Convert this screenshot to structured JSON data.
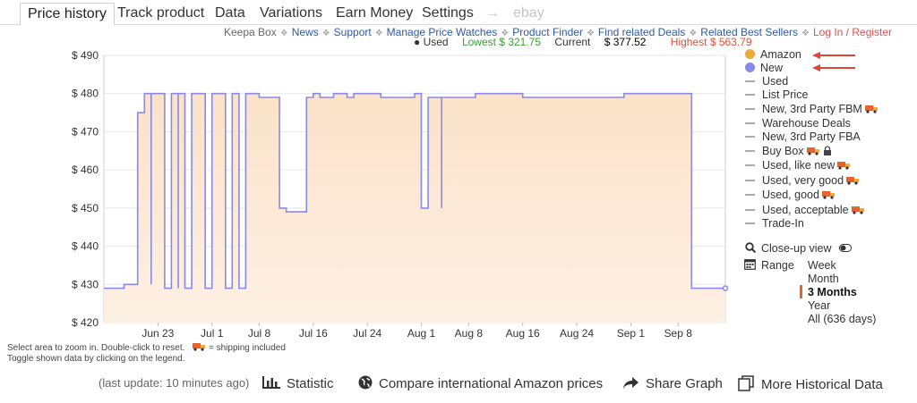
{
  "tabs": [
    {
      "label": "Price history",
      "active": true
    },
    {
      "label": "Track product"
    },
    {
      "label": "Data"
    },
    {
      "label": "Variations"
    },
    {
      "label": "Earn Money"
    },
    {
      "label": "Settings"
    },
    {
      "label": "→",
      "icon": "arrow-right-icon"
    },
    {
      "label": "ebay",
      "disabled": true
    }
  ],
  "links": [
    {
      "label": "Keepa Box"
    },
    {
      "label": "News"
    },
    {
      "label": "Support"
    },
    {
      "label": "Manage Price Watches"
    },
    {
      "label": "Product Finder"
    },
    {
      "label": "Find related Deals"
    },
    {
      "label": "Related Best Sellers"
    },
    {
      "label": "Log In / Register"
    }
  ],
  "link_separator": "❖",
  "stats": {
    "used": "● Used",
    "lowest": "Lowest $ 321.75",
    "current_label": "Current",
    "current_value": "$ 377.52",
    "highest": "Highest $ 563.79"
  },
  "legend": {
    "amazon": "Amazon",
    "new": "New",
    "used": "Used",
    "list_price": "List Price",
    "new_3p_fbm": "New, 3rd Party FBM",
    "warehouse": "Warehouse Deals",
    "new_3p_fba": "New, 3rd Party FBA",
    "buy_box": "Buy Box",
    "used_like_new": "Used, like new",
    "used_very_good": "Used, very good",
    "used_good": "Used, good",
    "used_acceptable": "Used, acceptable",
    "trade_in": "Trade-In",
    "close_up": "Close-up view"
  },
  "range": {
    "label": "Range",
    "options": [
      "Week",
      "Month",
      "3 Months",
      "Year",
      "All (636 days)"
    ],
    "active": "3 Months"
  },
  "help": {
    "line1": "Select area to zoom in. Double-click to reset.",
    "shipping": "= shipping included",
    "line2": "Toggle shown data by clicking on the legend."
  },
  "footer": {
    "last_update": "(last update: 10 minutes ago)",
    "statistic": "Statistic",
    "compare": "Compare international Amazon prices",
    "share": "Share Graph",
    "more": "More Historical Data"
  },
  "colors": {
    "new_line": "#8a8ae6",
    "fill": "#fbe5d0",
    "amazon": "#f0a93a",
    "arrow": "#e0453a"
  },
  "chart_data": {
    "type": "line",
    "ylim": [
      420,
      490
    ],
    "yticks": [
      420,
      430,
      440,
      450,
      460,
      470,
      480,
      490
    ],
    "ytick_labels": [
      "$ 420",
      "$ 430",
      "$ 440",
      "$ 450",
      "$ 460",
      "$ 470",
      "$ 480",
      "$ 490"
    ],
    "x_range": [
      "2025-06-15",
      "2025-09-15"
    ],
    "xticks": [
      {
        "label": "Jun 23",
        "date": "2025-06-23"
      },
      {
        "label": "Jul 1",
        "date": "2025-07-01"
      },
      {
        "label": "Jul 8",
        "date": "2025-07-08"
      },
      {
        "label": "Jul 16",
        "date": "2025-07-16"
      },
      {
        "label": "Jul 24",
        "date": "2025-07-24"
      },
      {
        "label": "Aug 1",
        "date": "2025-08-01"
      },
      {
        "label": "Aug 8",
        "date": "2025-08-08"
      },
      {
        "label": "Aug 16",
        "date": "2025-08-16"
      },
      {
        "label": "Aug 24",
        "date": "2025-08-24"
      },
      {
        "label": "Sep 1",
        "date": "2025-09-01"
      },
      {
        "label": "Sep 8",
        "date": "2025-09-08"
      }
    ],
    "series": [
      {
        "name": "New",
        "color": "#8a8ae6",
        "points": [
          [
            "2025-06-15",
            429
          ],
          [
            "2025-06-18",
            429
          ],
          [
            "2025-06-18",
            430
          ],
          [
            "2025-06-20",
            430
          ],
          [
            "2025-06-20",
            475
          ],
          [
            "2025-06-21",
            475
          ],
          [
            "2025-06-21",
            480
          ],
          [
            "2025-06-22",
            480
          ],
          [
            "2025-06-22",
            430
          ],
          [
            "2025-06-22",
            430
          ],
          [
            "2025-06-22",
            480
          ],
          [
            "2025-06-24",
            480
          ],
          [
            "2025-06-24",
            429
          ],
          [
            "2025-06-25",
            429
          ],
          [
            "2025-06-25",
            480
          ],
          [
            "2025-06-26",
            480
          ],
          [
            "2025-06-26",
            429
          ],
          [
            "2025-06-26",
            429
          ],
          [
            "2025-06-26",
            480
          ],
          [
            "2025-06-27",
            480
          ],
          [
            "2025-06-27",
            429
          ],
          [
            "2025-06-28",
            429
          ],
          [
            "2025-06-28",
            480
          ],
          [
            "2025-06-30",
            480
          ],
          [
            "2025-06-30",
            429
          ],
          [
            "2025-07-01",
            429
          ],
          [
            "2025-07-01",
            480
          ],
          [
            "2025-07-03",
            480
          ],
          [
            "2025-07-03",
            429
          ],
          [
            "2025-07-04",
            429
          ],
          [
            "2025-07-04",
            480
          ],
          [
            "2025-07-05",
            480
          ],
          [
            "2025-07-05",
            429
          ],
          [
            "2025-07-06",
            429
          ],
          [
            "2025-07-06",
            480
          ],
          [
            "2025-07-08",
            480
          ],
          [
            "2025-07-08",
            479
          ],
          [
            "2025-07-11",
            479
          ],
          [
            "2025-07-11",
            450
          ],
          [
            "2025-07-12",
            450
          ],
          [
            "2025-07-12",
            449
          ],
          [
            "2025-07-15",
            449
          ],
          [
            "2025-07-15",
            479
          ],
          [
            "2025-07-16",
            479
          ],
          [
            "2025-07-16",
            480
          ],
          [
            "2025-07-17",
            480
          ],
          [
            "2025-07-17",
            479
          ],
          [
            "2025-07-19",
            479
          ],
          [
            "2025-07-19",
            480
          ],
          [
            "2025-07-21",
            480
          ],
          [
            "2025-07-21",
            479
          ],
          [
            "2025-07-22",
            479
          ],
          [
            "2025-07-22",
            480
          ],
          [
            "2025-07-26",
            480
          ],
          [
            "2025-07-26",
            479
          ],
          [
            "2025-07-31",
            479
          ],
          [
            "2025-07-31",
            480
          ],
          [
            "2025-08-01",
            480
          ],
          [
            "2025-08-01",
            450
          ],
          [
            "2025-08-02",
            450
          ],
          [
            "2025-08-02",
            479
          ],
          [
            "2025-08-04",
            479
          ],
          [
            "2025-08-04",
            450
          ],
          [
            "2025-08-04",
            450
          ],
          [
            "2025-08-04",
            479
          ],
          [
            "2025-08-09",
            479
          ],
          [
            "2025-08-09",
            480
          ],
          [
            "2025-08-16",
            480
          ],
          [
            "2025-08-16",
            479
          ],
          [
            "2025-08-23",
            479
          ],
          [
            "2025-08-23",
            479
          ],
          [
            "2025-08-31",
            479
          ],
          [
            "2025-08-31",
            480
          ],
          [
            "2025-09-05",
            480
          ],
          [
            "2025-09-05",
            480
          ],
          [
            "2025-09-10",
            480
          ],
          [
            "2025-09-10",
            429
          ],
          [
            "2025-09-15",
            429
          ]
        ]
      }
    ]
  }
}
